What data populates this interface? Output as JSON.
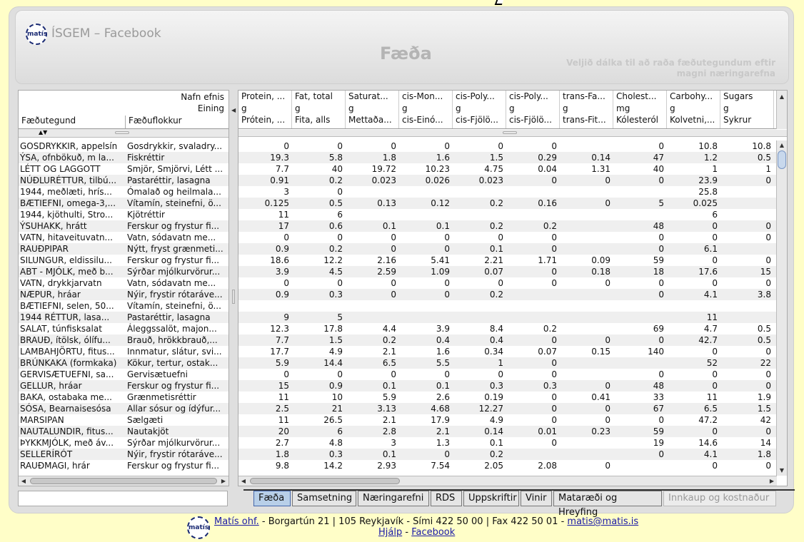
{
  "app": {
    "title": "ÍSGEM – Facebook",
    "logo_text": "matís",
    "page_title": "Fæða",
    "hint": "Veljið dálka til að raða fæðutegundum eftir magni næringarefna"
  },
  "left": {
    "header_top": "Nafn efnis",
    "header_unit": "Eining",
    "col1": "Fæðutegund",
    "col2": "Fæðuflokkur",
    "rows": [
      [
        "GOSDRYKKIR, appelsín",
        "Gosdrykkir, svaladry..."
      ],
      [
        "ÝSA, ofnbökuð, m la...",
        "Fiskréttir"
      ],
      [
        "LÉTT OG LAGGOTT",
        "Smjör, Smjörvi, Létt ..."
      ],
      [
        "NÚÐLURÉTTUR, tilbú...",
        "Pastaréttir, lasagna"
      ],
      [
        "1944, meðlæti, hrís...",
        "Ómalað og heilmala..."
      ],
      [
        "BÆTIEFNI, omega-3,...",
        "Vítamín, steinefni, ö..."
      ],
      [
        "1944, kjöthulti, Stro...",
        "Kjötréttir"
      ],
      [
        "ÝSUHAKK, hrátt",
        "Ferskur og frystur fi..."
      ],
      [
        "VATN, hitaveituvatn...",
        "Vatn, sódavatn me..."
      ],
      [
        "RAUÐPIPAR",
        "Nýtt, fryst grænmeti..."
      ],
      [
        "SILUNGUR, eldissilu...",
        "Ferskur og frystur fi..."
      ],
      [
        "ABT - MJÓLK, með b...",
        "Sýrðar mjólkurvörur..."
      ],
      [
        "VATN, drykkjarvatn",
        "Vatn, sódavatn me..."
      ],
      [
        "NÆPUR, hráar",
        "Nýir, frystir rótaráve..."
      ],
      [
        "BÆTIEFNI, selen, 50...",
        "Vítamín, steinefni, ö..."
      ],
      [
        "1944 RÉTTUR, lasa...",
        "Pastaréttir, lasagna"
      ],
      [
        "SALAT, túnfisksalat",
        "Áleggssalöt, majon..."
      ],
      [
        "BRAUÐ, ítölsk, ólífu...",
        "Brauð, hrökkbrauð,..."
      ],
      [
        "LAMBAHJÖRTU, fitus...",
        "Innmatur, slátur, svi..."
      ],
      [
        "BRÚNKAKA (formkaka)",
        "Kökur, tertur, ostak..."
      ],
      [
        "GERVISÆTUEFNI, sa...",
        "Gervisætuefni"
      ],
      [
        "GELLUR, hráar",
        "Ferskur og frystur fi..."
      ],
      [
        "BAKA, ostabaka me...",
        "Grænmetisréttir"
      ],
      [
        "SÓSA, Bearnaisesósa",
        "Allar sósur og ídýfur..."
      ],
      [
        "MARSIPAN",
        "Sælgæti"
      ],
      [
        "NAUTALUNDIR, fitus...",
        "Nautakjöt"
      ],
      [
        "ÞYKKMJÓLK, með áv...",
        "Sýrðar mjólkurvörur..."
      ],
      [
        "SELLERÍRÓT",
        "Nýir, frystir rótaráve..."
      ],
      [
        "RAUÐMAGI, hrár",
        "Ferskur og frystur fi..."
      ]
    ]
  },
  "right": {
    "columns": [
      {
        "name": "Protein, ...",
        "unit": "g",
        "local": "Prótein, ..."
      },
      {
        "name": "Fat, total",
        "unit": "g",
        "local": "Fita, alls"
      },
      {
        "name": "Saturat...",
        "unit": "g",
        "local": "Mettaða..."
      },
      {
        "name": "cis-Mon...",
        "unit": "g",
        "local": "cis-Einó..."
      },
      {
        "name": "cis-Poly...",
        "unit": "g",
        "local": "cis-Fjölö..."
      },
      {
        "name": "cis-Poly...",
        "unit": "g",
        "local": "cis-Fjölö..."
      },
      {
        "name": "trans-Fa...",
        "unit": "g",
        "local": "trans-Fit..."
      },
      {
        "name": "Cholest...",
        "unit": "mg",
        "local": "Kólesteról"
      },
      {
        "name": "Carbohy...",
        "unit": "g",
        "local": "Kolvetni,..."
      },
      {
        "name": "Sugars",
        "unit": "g",
        "local": "Sykrur"
      }
    ],
    "rows": [
      [
        "0",
        "0",
        "0",
        "0",
        "0",
        "0",
        "",
        "0",
        "10.8",
        "10.8"
      ],
      [
        "19.3",
        "5.8",
        "1.8",
        "1.6",
        "1.5",
        "0.29",
        "0.14",
        "47",
        "1.2",
        "0.5"
      ],
      [
        "7.7",
        "40",
        "19.72",
        "10.23",
        "4.75",
        "0.04",
        "1.31",
        "40",
        "1",
        "1"
      ],
      [
        "0.91",
        "0.2",
        "0.023",
        "0.026",
        "0.023",
        "0",
        "0",
        "0",
        "23.9",
        "0"
      ],
      [
        "3",
        "0",
        "",
        "",
        "",
        "",
        "",
        "",
        "25.8",
        ""
      ],
      [
        "0.125",
        "0.5",
        "0.13",
        "0.12",
        "0.2",
        "0.16",
        "0",
        "5",
        "0.025",
        ""
      ],
      [
        "11",
        "6",
        "",
        "",
        "",
        "",
        "",
        "",
        "6",
        ""
      ],
      [
        "17",
        "0.6",
        "0.1",
        "0.1",
        "0.2",
        "0.2",
        "",
        "48",
        "0",
        "0"
      ],
      [
        "0",
        "0",
        "0",
        "0",
        "0",
        "0",
        "",
        "0",
        "0",
        "0"
      ],
      [
        "0.9",
        "0.2",
        "0",
        "0",
        "0.1",
        "0",
        "",
        "0",
        "6.1",
        ""
      ],
      [
        "18.6",
        "12.2",
        "2.16",
        "5.41",
        "2.21",
        "1.71",
        "0.09",
        "59",
        "0",
        "0"
      ],
      [
        "3.9",
        "4.5",
        "2.59",
        "1.09",
        "0.07",
        "0",
        "0.18",
        "18",
        "17.6",
        "15"
      ],
      [
        "0",
        "0",
        "0",
        "0",
        "0",
        "0",
        "0",
        "0",
        "0",
        "0"
      ],
      [
        "0.9",
        "0.3",
        "0",
        "0",
        "0.2",
        "",
        "",
        "0",
        "4.1",
        "3.8"
      ],
      [
        "",
        "",
        "",
        "",
        "",
        "",
        "",
        "",
        "",
        ""
      ],
      [
        "9",
        "5",
        "",
        "",
        "",
        "",
        "",
        "",
        "11",
        ""
      ],
      [
        "12.3",
        "17.8",
        "4.4",
        "3.9",
        "8.4",
        "0.2",
        "",
        "69",
        "4.7",
        "0.5"
      ],
      [
        "7.7",
        "1.5",
        "0.2",
        "0.4",
        "0.4",
        "0",
        "0",
        "0",
        "42.7",
        "0.5"
      ],
      [
        "17.7",
        "4.9",
        "2.1",
        "1.6",
        "0.34",
        "0.07",
        "0.15",
        "140",
        "0",
        "0"
      ],
      [
        "5.9",
        "14.4",
        "6.5",
        "5.5",
        "1",
        "0",
        "",
        "",
        "52",
        "22"
      ],
      [
        "0",
        "0",
        "0",
        "0",
        "0",
        "0",
        "",
        "0",
        "0",
        "0"
      ],
      [
        "15",
        "0.9",
        "0.1",
        "0.1",
        "0.3",
        "0.3",
        "0",
        "48",
        "0",
        "0"
      ],
      [
        "11",
        "10",
        "5.9",
        "2.6",
        "0.19",
        "0",
        "0.41",
        "33",
        "11",
        "1.9"
      ],
      [
        "2.5",
        "21",
        "3.13",
        "4.68",
        "12.27",
        "0",
        "0",
        "67",
        "6.5",
        "1.5"
      ],
      [
        "11",
        "26.5",
        "2.1",
        "17.9",
        "4.9",
        "0",
        "0",
        "0",
        "47.2",
        "42"
      ],
      [
        "20",
        "6",
        "2.8",
        "2.1",
        "0.14",
        "0.01",
        "0.23",
        "59",
        "0",
        "0"
      ],
      [
        "2.7",
        "4.8",
        "3",
        "1.3",
        "0.1",
        "0",
        "",
        "19",
        "14.6",
        "14"
      ],
      [
        "1.8",
        "0.3",
        "0.1",
        "0",
        "0.2",
        "",
        "",
        "0",
        "4.1",
        "1.8"
      ],
      [
        "9.8",
        "14.2",
        "2.93",
        "7.54",
        "2.05",
        "2.08",
        "0",
        "",
        "0",
        "0"
      ]
    ]
  },
  "tabs": [
    {
      "label": "Fæða",
      "state": "selected"
    },
    {
      "label": "Samsetning",
      "state": "normal"
    },
    {
      "label": "Næringarefni",
      "state": "normal"
    },
    {
      "label": "RDS",
      "state": "normal"
    },
    {
      "label": "Uppskriftir",
      "state": "normal"
    },
    {
      "label": "Vinir",
      "state": "normal"
    },
    {
      "label": "Mataræði og Hreyfing",
      "state": "normal"
    },
    {
      "label": "Innkaup og kostnaður",
      "state": "disabled"
    }
  ],
  "footer": {
    "company": "Matís ohf.",
    "address": " - Borgartún 21 | 105 Reykjavík - Sími 422 50 00 | Fax 422 50 01 - ",
    "email": "matis@matis.is",
    "help": "Hjálp",
    "sep": " - ",
    "facebook": "Facebook"
  }
}
